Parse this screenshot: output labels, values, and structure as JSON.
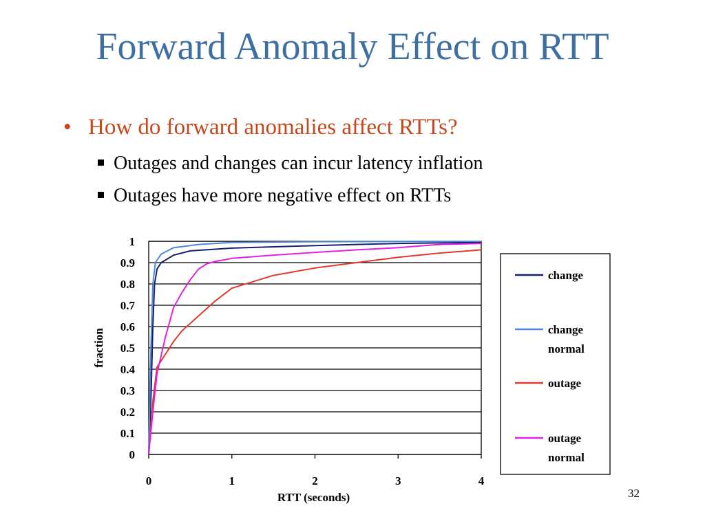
{
  "slide": {
    "title": "Forward Anomaly Effect on RTT",
    "bullet_main": "How do forward anomalies affect RTTs?",
    "sub_bullets": [
      "Outages and changes can incur latency inflation",
      "Outages have more negative effect on RTTs"
    ],
    "page_number": "32"
  },
  "colors": {
    "title": "#3E6FA3",
    "bullet": "#C8461B"
  },
  "chart_data": {
    "type": "line",
    "title": "",
    "xlabel": "RTT (seconds)",
    "ylabel": "fraction",
    "xlim": [
      0,
      4
    ],
    "ylim": [
      0,
      1
    ],
    "x_ticks": [
      "0",
      "1",
      "2",
      "3",
      "4"
    ],
    "y_ticks": [
      "0",
      "0.1",
      "0.2",
      "0.3",
      "0.4",
      "0.5",
      "0.6",
      "0.7",
      "0.8",
      "0.9",
      "1"
    ],
    "grid": "horizontal",
    "legend_position": "right",
    "series": [
      {
        "name": "change",
        "color": "#14206E",
        "points": [
          [
            0,
            0
          ],
          [
            0.03,
            0.3
          ],
          [
            0.05,
            0.6
          ],
          [
            0.07,
            0.8
          ],
          [
            0.1,
            0.87
          ],
          [
            0.15,
            0.9
          ],
          [
            0.3,
            0.935
          ],
          [
            0.5,
            0.955
          ],
          [
            1,
            0.968
          ],
          [
            2,
            0.98
          ],
          [
            3,
            0.99
          ],
          [
            4,
            0.995
          ]
        ]
      },
      {
        "name": "change normal",
        "color": "#4F87DA",
        "points": [
          [
            0,
            0
          ],
          [
            0.02,
            0.4
          ],
          [
            0.05,
            0.8
          ],
          [
            0.08,
            0.9
          ],
          [
            0.15,
            0.94
          ],
          [
            0.3,
            0.97
          ],
          [
            0.6,
            0.985
          ],
          [
            1,
            0.995
          ],
          [
            2,
            0.998
          ],
          [
            4,
            1.0
          ]
        ]
      },
      {
        "name": "outage",
        "color": "#E03A2A",
        "points": [
          [
            0,
            0
          ],
          [
            0.05,
            0.25
          ],
          [
            0.1,
            0.41
          ],
          [
            0.2,
            0.47
          ],
          [
            0.3,
            0.53
          ],
          [
            0.4,
            0.58
          ],
          [
            0.6,
            0.65
          ],
          [
            0.8,
            0.72
          ],
          [
            1,
            0.78
          ],
          [
            1.5,
            0.84
          ],
          [
            2,
            0.875
          ],
          [
            2.5,
            0.9
          ],
          [
            3,
            0.925
          ],
          [
            3.5,
            0.945
          ],
          [
            4,
            0.96
          ]
        ]
      },
      {
        "name": "outage normal",
        "color": "#E21FE2",
        "points": [
          [
            0,
            0
          ],
          [
            0.05,
            0.2
          ],
          [
            0.1,
            0.38
          ],
          [
            0.2,
            0.55
          ],
          [
            0.3,
            0.69
          ],
          [
            0.4,
            0.76
          ],
          [
            0.5,
            0.82
          ],
          [
            0.6,
            0.87
          ],
          [
            0.7,
            0.895
          ],
          [
            0.8,
            0.905
          ],
          [
            1,
            0.92
          ],
          [
            1.5,
            0.935
          ],
          [
            2,
            0.948
          ],
          [
            2.5,
            0.96
          ],
          [
            3,
            0.97
          ],
          [
            3.5,
            0.985
          ],
          [
            4,
            0.99
          ]
        ]
      }
    ],
    "legend": [
      {
        "lines": [
          "change"
        ]
      },
      {
        "lines": [
          "change",
          "normal"
        ]
      },
      {
        "lines": [
          "outage"
        ]
      },
      {
        "lines": [
          "outage",
          "normal"
        ]
      }
    ]
  }
}
